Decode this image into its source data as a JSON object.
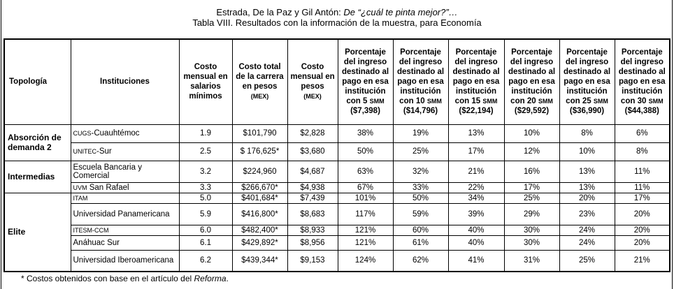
{
  "header": {
    "line1_authors": "Estrada, De la Paz y Gil Antón: ",
    "line1_title": "De “¿cuál te pinta mejor?”…",
    "line2": "Tabla VIII. Resultados con la información de la muestra, para Economía"
  },
  "table": {
    "columns": {
      "tipologia": "Topología",
      "instituciones": "Instituciones",
      "costo_salarios": "Costo mensual en salarios mínimos",
      "costo_total": "Costo total de la carrera en pesos",
      "costo_total_unit": "(MEX)",
      "costo_pesos": "Costo mensual en pesos",
      "costo_pesos_unit": "(MEX)",
      "pct_prefix": "Porcentaje del ingreso destinado al pago en esa institución con",
      "pct_unit": "SMM",
      "pct_cols": [
        {
          "n": "5",
          "amount": "($7,398)"
        },
        {
          "n": "10",
          "amount": "($14,796)"
        },
        {
          "n": "15",
          "amount": "($22,194)"
        },
        {
          "n": "20",
          "amount": "($29,592)"
        },
        {
          "n": "25",
          "amount": "($36,990)"
        },
        {
          "n": "30",
          "amount": "($44,388)"
        }
      ]
    },
    "groups": [
      {
        "name": "Absorción de demanda 2"
      },
      {
        "name": "Intermedias"
      },
      {
        "name": "Elite"
      }
    ],
    "rows": [
      {
        "abbr": "CUGS",
        "name": "-Cuauhtémoc",
        "salarios": "1.9",
        "total": "$101,790",
        "mensual": "$2,828",
        "pct": [
          "38%",
          "19%",
          "13%",
          "10%",
          "8%",
          "6%"
        ]
      },
      {
        "abbr": "UNITEC",
        "name": "-Sur",
        "salarios": "2.5",
        "total": "$ 176,625*",
        "mensual": "$3,680",
        "pct": [
          "50%",
          "25%",
          "17%",
          "12%",
          "10%",
          "8%"
        ]
      },
      {
        "abbr": "",
        "name": "Escuela Bancaria y Comercial",
        "salarios": "3.2",
        "total": "$224,960",
        "mensual": "$4,687",
        "pct": [
          "63%",
          "32%",
          "21%",
          "16%",
          "13%",
          "11%"
        ]
      },
      {
        "abbr": "UVM",
        "name": " San Rafael",
        "salarios": "3.3",
        "total": "$266,670*",
        "mensual": "$4,938",
        "pct": [
          "67%",
          "33%",
          "22%",
          "17%",
          "13%",
          "11%"
        ]
      },
      {
        "abbr": "ITAM",
        "name": "",
        "salarios": "5.0",
        "total": "$401,684*",
        "mensual": "$7,439",
        "pct": [
          "101%",
          "50%",
          "34%",
          "25%",
          "20%",
          "17%"
        ]
      },
      {
        "abbr": "",
        "name": "Universidad Panamericana",
        "salarios": "5.9",
        "total": "$416,800*",
        "mensual": "$8,683",
        "pct": [
          "117%",
          "59%",
          "39%",
          "29%",
          "23%",
          "20%"
        ]
      },
      {
        "abbr": "ITESM-CCM",
        "name": "",
        "salarios": "6.0",
        "total": "$482,400*",
        "mensual": "$8,933",
        "pct": [
          "121%",
          "60%",
          "40%",
          "30%",
          "24%",
          "20%"
        ]
      },
      {
        "abbr": "",
        "name": "Anáhuac Sur",
        "salarios": "6.1",
        "total": "$429,892*",
        "mensual": "$8,956",
        "pct": [
          "121%",
          "61%",
          "40%",
          "30%",
          "24%",
          "20%"
        ]
      },
      {
        "abbr": "",
        "name": "Universidad Iberoamericana",
        "salarios": "6.2",
        "total": "$439,344*",
        "mensual": "$9,153",
        "pct": [
          "124%",
          "62%",
          "41%",
          "31%",
          "25%",
          "21%"
        ]
      }
    ]
  },
  "footnote": {
    "text": "* Costos obtenidos con base en el artículo del ",
    "source": "Reforma",
    "end": "."
  }
}
